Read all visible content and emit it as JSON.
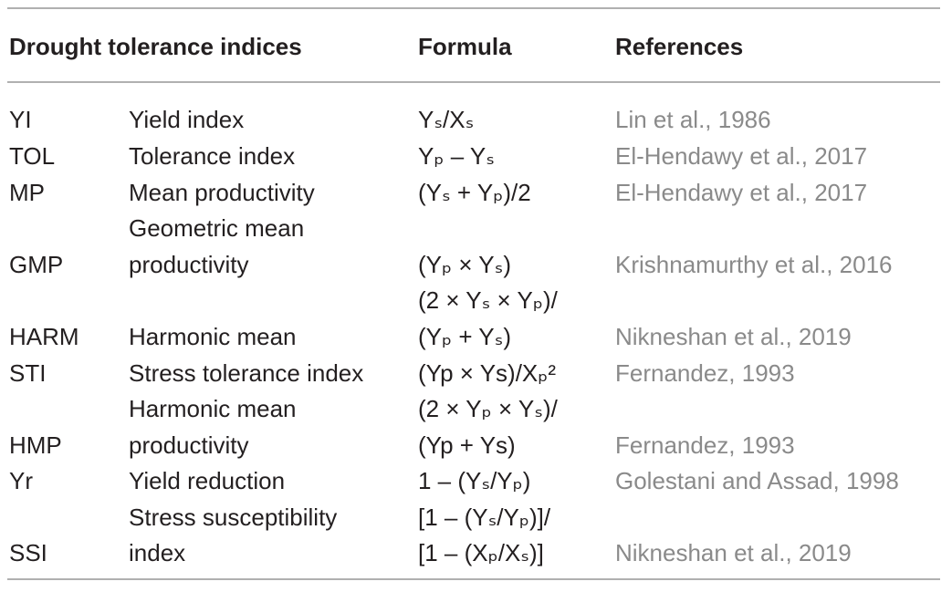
{
  "header": {
    "indices": "Drought tolerance indices",
    "formula": "Formula",
    "references": "References"
  },
  "rows": [
    {
      "abbr": "YI",
      "name": "Yield index",
      "formula": "Yₛ/Xₛ",
      "ref": "Lin et al., 1986"
    },
    {
      "abbr": "TOL",
      "name": "Tolerance index",
      "formula": "Yₚ – Yₛ",
      "ref": "El-Hendawy et al., 2017"
    },
    {
      "abbr": "MP",
      "name": "Mean productivity",
      "formula": "(Yₛ + Yₚ)/2",
      "ref": "El-Hendawy et al., 2017"
    },
    {
      "abbr": "",
      "name": "Geometric mean",
      "formula": "",
      "ref": ""
    },
    {
      "abbr": "GMP",
      "name": "productivity",
      "formula": "(Yₚ × Yₛ)",
      "ref": "Krishnamurthy et al., 2016"
    },
    {
      "abbr": "",
      "name": "",
      "formula": "(2 × Yₛ × Yₚ)/",
      "ref": ""
    },
    {
      "abbr": "HARM",
      "name": "Harmonic mean",
      "formula": "(Yₚ + Yₛ)",
      "ref": "Nikneshan et al., 2019"
    },
    {
      "abbr": "STI",
      "name": "Stress tolerance index",
      "formula": "(Yp × Ys)/Xₚ²",
      "ref": "Fernandez, 1993"
    },
    {
      "abbr": "",
      "name": "Harmonic mean",
      "formula": "(2 × Yₚ × Yₛ)/",
      "ref": ""
    },
    {
      "abbr": "HMP",
      "name": "productivity",
      "formula": "(Yp + Ys)",
      "ref": "Fernandez, 1993"
    },
    {
      "abbr": "Yr",
      "name": "Yield reduction",
      "formula": "1 – (Yₛ/Yₚ)",
      "ref": "Golestani and Assad, 1998"
    },
    {
      "abbr": "",
      "name": "Stress susceptibility",
      "formula": "[1 – (Yₛ/Yₚ)]/",
      "ref": ""
    },
    {
      "abbr": "SSI",
      "name": "index",
      "formula": "[1 – (Xₚ/Xₛ)]",
      "ref": "Nikneshan et al., 2019"
    }
  ]
}
